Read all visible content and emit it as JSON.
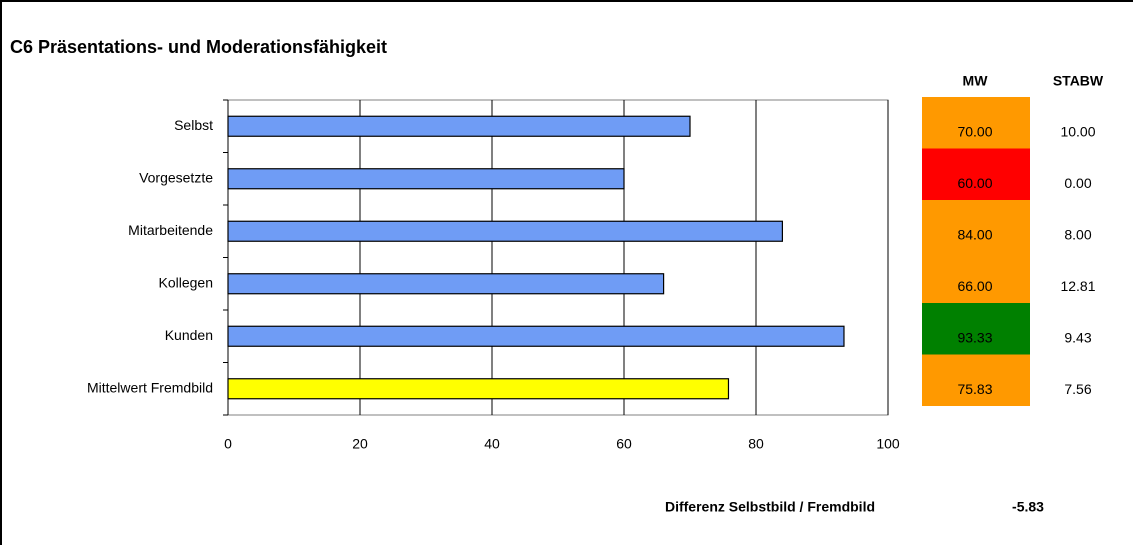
{
  "chart_data": {
    "type": "bar",
    "orientation": "horizontal",
    "title": "C6 Präsentations- und Moderationsfähigkeit",
    "categories": [
      "Selbst",
      "Vorgesetzte",
      "Mitarbeitende",
      "Kollegen",
      "Kunden",
      "Mittelwert Fremdbild"
    ],
    "values": [
      70,
      60,
      84,
      66,
      93.33,
      75.83
    ],
    "colors": [
      "#6f9cf5",
      "#6f9cf5",
      "#6f9cf5",
      "#6f9cf5",
      "#6f9cf5",
      "#ffff00"
    ],
    "xlim": [
      0,
      100
    ],
    "xticks": [
      0,
      20,
      40,
      60,
      80,
      100
    ],
    "grid": true
  },
  "table": {
    "headers": [
      "MW",
      "STABW"
    ],
    "rows": [
      [
        "70.00",
        "10.00"
      ],
      [
        "60.00",
        "0.00"
      ],
      [
        "84.00",
        "8.00"
      ],
      [
        "66.00",
        "12.81"
      ],
      [
        "93.33",
        "9.43"
      ],
      [
        "75.83",
        "7.56"
      ]
    ],
    "mw_colors": [
      "#ff9900",
      "#ff0000",
      "#ff9900",
      "#ff9900",
      "#008000",
      "#ff9900"
    ]
  },
  "footer": {
    "label": "Differenz Selbstbild / Fremdbild",
    "value": "-5.83"
  }
}
